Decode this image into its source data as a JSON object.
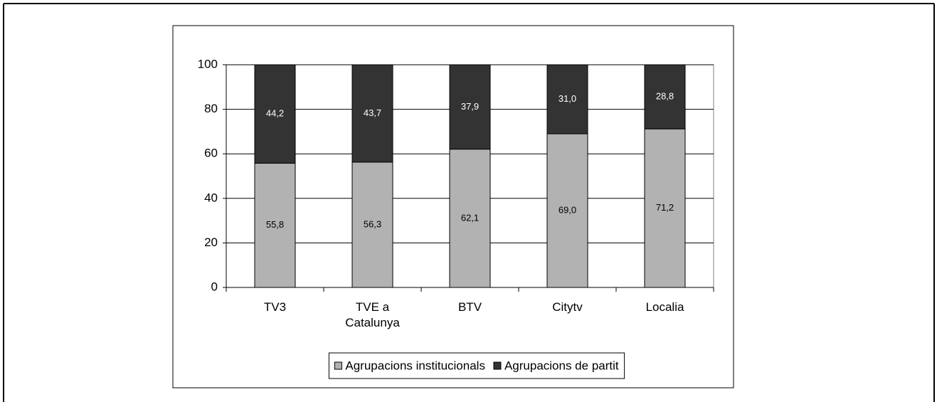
{
  "chart_data": {
    "type": "stacked_bar",
    "categories": [
      "TV3",
      "TVE a Catalunya",
      "BTV",
      "Citytv",
      "Localia"
    ],
    "series": [
      {
        "name": "Agrupacions institucionals",
        "color": "#b2b2b2",
        "values": [
          55.8,
          56.3,
          62.1,
          69.0,
          71.2
        ],
        "value_labels": [
          "55,8",
          "56,3",
          "62,1",
          "69,0",
          "71,2"
        ]
      },
      {
        "name": "Agrupacions de partit",
        "color": "#333333",
        "values": [
          44.2,
          43.7,
          37.9,
          31.0,
          28.8
        ],
        "value_labels": [
          "44,2",
          "43,7",
          "37,9",
          "31,0",
          "28,8"
        ]
      }
    ],
    "ylim": [
      0,
      100
    ],
    "yticks": [
      0,
      20,
      40,
      60,
      80,
      100
    ],
    "grid": true,
    "legend": "bottom"
  }
}
